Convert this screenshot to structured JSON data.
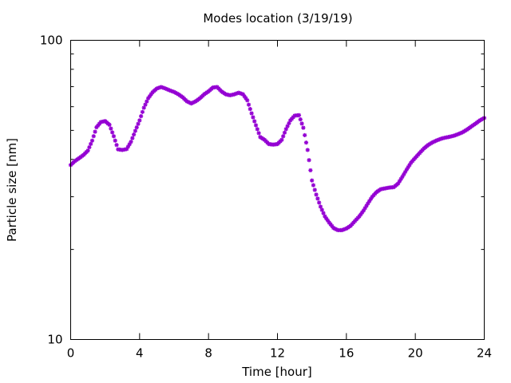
{
  "chart_data": {
    "type": "scatter",
    "title": "Modes location (3/19/19)",
    "xlabel": "Time [hour]",
    "ylabel": "Particle size [nm]",
    "xlim": [
      0,
      24
    ],
    "ylim": [
      10,
      100
    ],
    "yscale": "log",
    "grid": false,
    "legend": "none",
    "xticks": [
      0,
      4,
      8,
      12,
      16,
      20,
      24
    ],
    "xtick_labels": [
      "0",
      "4",
      "8",
      "12",
      "16",
      "20",
      "24"
    ],
    "yticks": [
      10,
      100
    ],
    "ytick_labels": [
      "10",
      "100"
    ],
    "marker_color": "#9400d3",
    "marker": "star",
    "series": [
      {
        "x": [
          0,
          0.25,
          0.5,
          0.75,
          1.0,
          1.25,
          1.5,
          1.75,
          2.0,
          2.25,
          2.5,
          2.75,
          3.0,
          3.25,
          3.5,
          3.75,
          4.0,
          4.25,
          4.5,
          4.75,
          5.0,
          5.25,
          5.5,
          5.75,
          6.0,
          6.25,
          6.5,
          6.75,
          7.0,
          7.25,
          7.5,
          7.75,
          8.0,
          8.25,
          8.5,
          8.75,
          9.0,
          9.25,
          9.5,
          9.75,
          10.0,
          10.25,
          10.5,
          10.75,
          11.0,
          11.25,
          11.5,
          11.75,
          12.0,
          12.25,
          12.5,
          12.75,
          13.0,
          13.25,
          13.5,
          13.75,
          14.0,
          14.25,
          14.5,
          14.75,
          15.0,
          15.25,
          15.5,
          15.75,
          16.0,
          16.25,
          16.5,
          16.75,
          17.0,
          17.25,
          17.5,
          17.75,
          18.0,
          18.25,
          18.5,
          18.75,
          19.0,
          19.25,
          19.5,
          19.75,
          20.0,
          20.25,
          20.5,
          20.75,
          21.0,
          21.25,
          21.5,
          21.75,
          22.0,
          22.25,
          22.5,
          22.75,
          23.0,
          23.25,
          23.5,
          23.75,
          24.0
        ],
        "values": [
          38.3,
          39.5,
          40.4,
          41.4,
          42.8,
          46.2,
          51.2,
          53.3,
          53.7,
          52.2,
          47.8,
          43.2,
          43.0,
          43.3,
          45.8,
          49.8,
          54.0,
          59.5,
          64.0,
          67.0,
          69.0,
          69.8,
          69.0,
          68.0,
          67.2,
          66.0,
          64.5,
          62.5,
          61.5,
          62.5,
          64.0,
          66.0,
          67.5,
          69.5,
          69.8,
          67.5,
          66.0,
          65.5,
          66.0,
          66.8,
          66.0,
          63.0,
          57.0,
          52.0,
          47.5,
          46.5,
          45.0,
          44.8,
          45.0,
          46.5,
          50.5,
          54.0,
          56.0,
          56.2,
          51.0,
          43.0,
          34.0,
          30.5,
          27.8,
          25.8,
          24.6,
          23.6,
          23.2,
          23.2,
          23.5,
          24.0,
          24.9,
          25.8,
          27.0,
          28.5,
          30.0,
          31.1,
          31.8,
          32.0,
          32.2,
          32.3,
          33.2,
          35.0,
          37.0,
          39.0,
          40.5,
          42.0,
          43.5,
          44.7,
          45.6,
          46.3,
          46.9,
          47.3,
          47.6,
          48.0,
          48.6,
          49.3,
          50.3,
          51.5,
          52.7,
          54.0,
          55.0
        ]
      }
    ]
  }
}
